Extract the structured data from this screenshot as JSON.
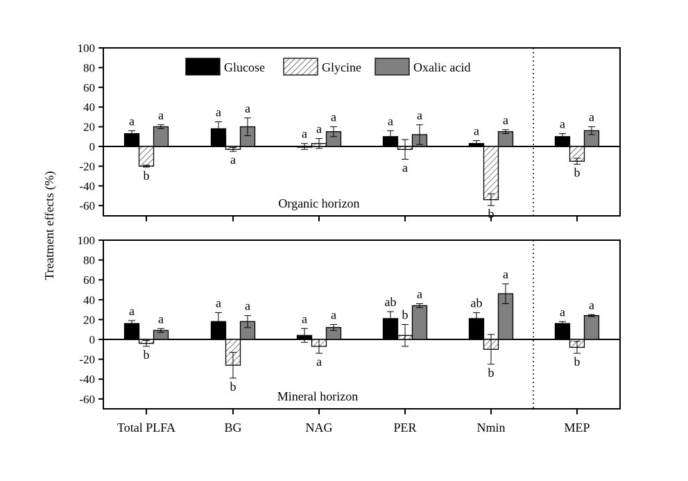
{
  "chart_data": {
    "type": "bar",
    "ylabel": "Treatment effects (%)",
    "categories": [
      "Total PLFA",
      "BG",
      "NAG",
      "PER",
      "Nmin",
      "MEP"
    ],
    "ylim": [
      -70,
      100
    ],
    "yticks": [
      -60,
      -40,
      -20,
      0,
      20,
      40,
      60,
      80,
      100
    ],
    "legend": {
      "position": "top-center",
      "entries": [
        {
          "name": "Glucose",
          "fill": "#000000",
          "pattern": "solid"
        },
        {
          "name": "Glycine",
          "fill": "#ffffff",
          "pattern": "hatch"
        },
        {
          "name": "Oxalic acid",
          "fill": "#808080",
          "pattern": "solid"
        }
      ]
    },
    "separator_after_category": "Nmin",
    "panels": [
      {
        "name": "Organic horizon",
        "series": [
          {
            "name": "Glucose",
            "values": [
              13,
              18,
              0,
              10,
              3,
              10
            ],
            "errors": [
              3,
              7,
              3,
              6,
              3,
              3
            ],
            "letters": [
              "a",
              "a",
              "a",
              "a",
              "a",
              "a"
            ]
          },
          {
            "name": "Glycine",
            "values": [
              -20,
              -3,
              3,
              -3,
              -54,
              -15
            ],
            "errors": [
              1,
              2,
              5,
              10,
              6,
              3
            ],
            "letters": [
              "b",
              "a",
              "a",
              "a",
              "b",
              "b"
            ]
          },
          {
            "name": "Oxalic acid",
            "values": [
              20,
              20,
              15,
              12,
              15,
              16
            ],
            "errors": [
              2,
              9,
              5,
              10,
              2,
              4
            ],
            "letters": [
              "a",
              "a",
              "a",
              "a",
              "a",
              "a"
            ]
          }
        ]
      },
      {
        "name": "Mineral horizon",
        "series": [
          {
            "name": "Glucose",
            "values": [
              16,
              18,
              4,
              21,
              21,
              16
            ],
            "errors": [
              3,
              9,
              7,
              7,
              6,
              2
            ],
            "letters": [
              "a",
              "a",
              "a",
              "ab",
              "ab",
              "a"
            ]
          },
          {
            "name": "Glycine",
            "values": [
              -4,
              -26,
              -7,
              4,
              -10,
              -8
            ],
            "errors": [
              3,
              13,
              7,
              11,
              15,
              6
            ],
            "letters": [
              "b",
              "b",
              "a",
              "b",
              "b",
              "b"
            ]
          },
          {
            "name": "Oxalic acid",
            "values": [
              9,
              18,
              12,
              34,
              46,
              24
            ],
            "errors": [
              2,
              6,
              3,
              2,
              10,
              1
            ],
            "letters": [
              "a",
              "a",
              "a",
              "a",
              "a",
              "a"
            ]
          }
        ]
      }
    ]
  }
}
